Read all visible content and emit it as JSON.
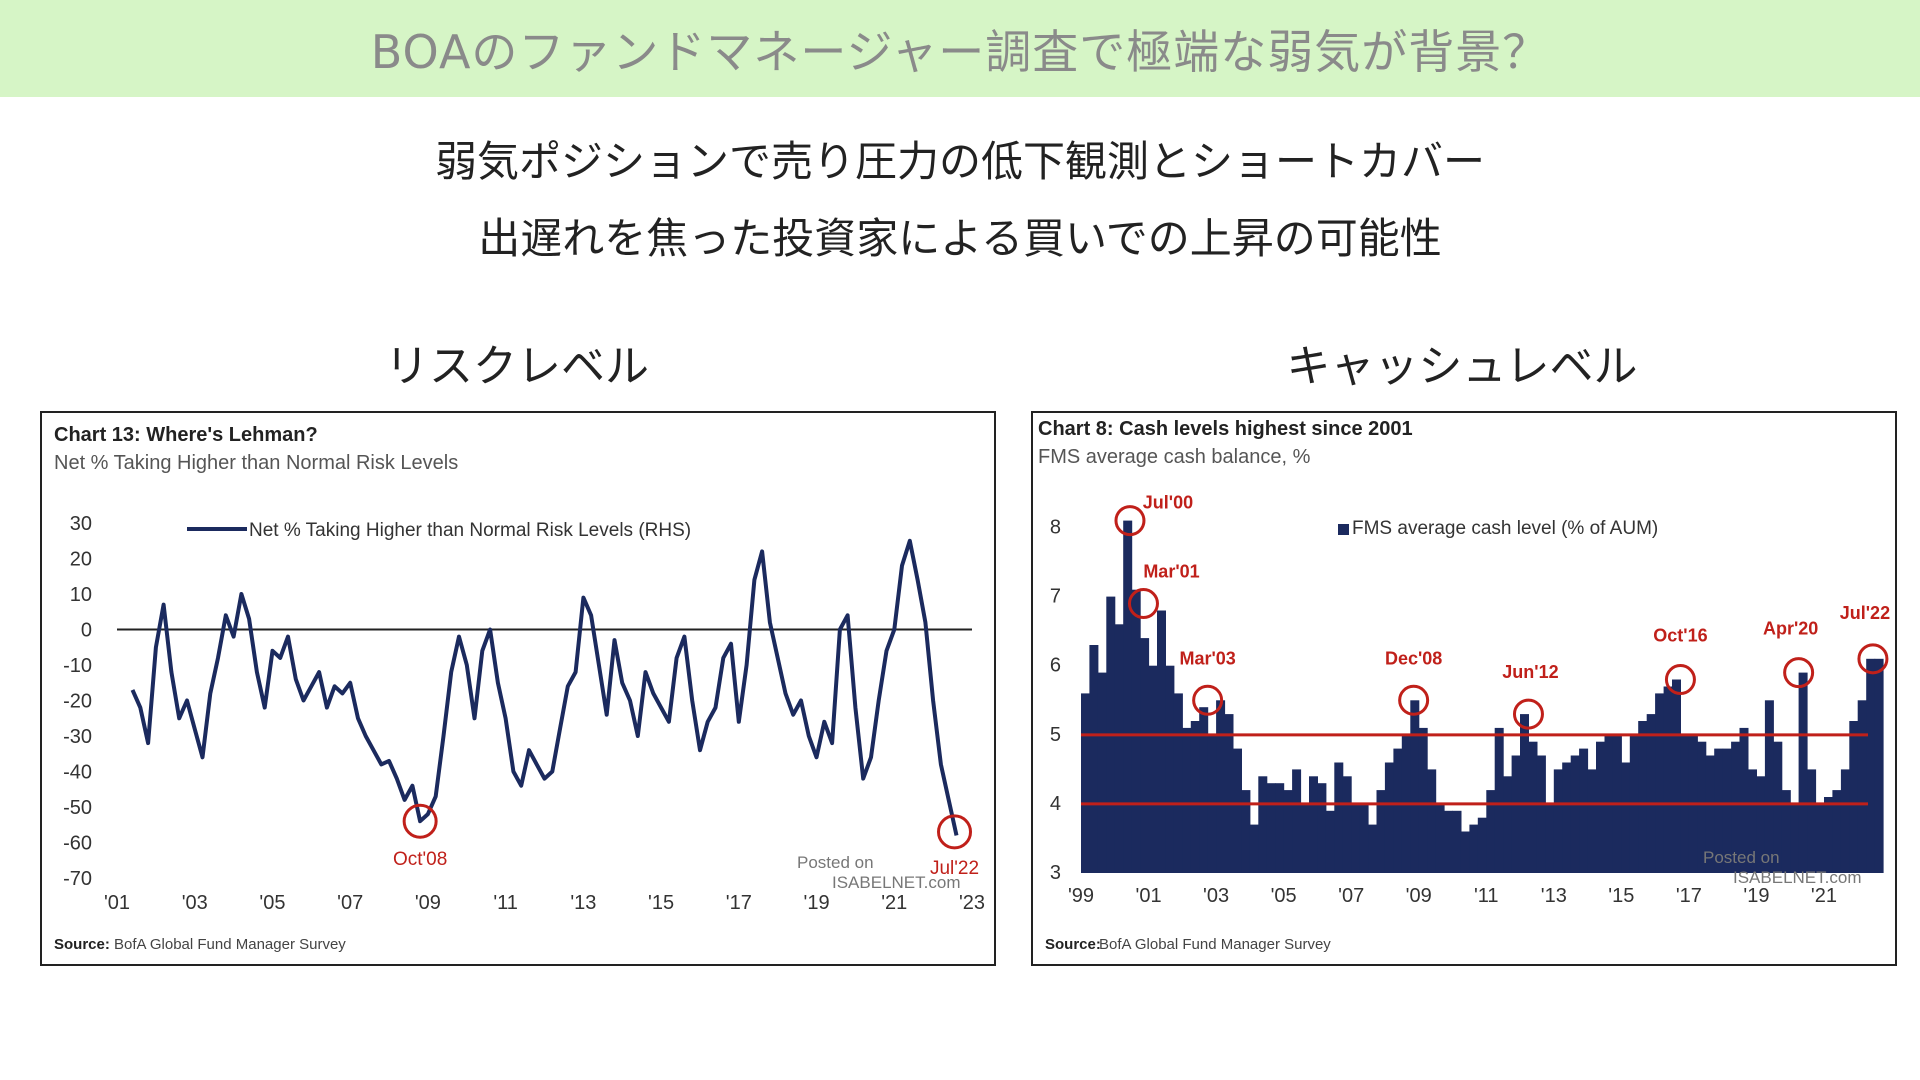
{
  "banner": {
    "title": "BOAのファンドマネージャー調査で極端な弱気が背景？"
  },
  "headline": {
    "line1": "弱気ポジションで売り圧力の低下観測とショートカバー",
    "line2": "出遅れを焦った投資家による買いでの上昇の可能性"
  },
  "panels": {
    "left_label": "リスクレベル",
    "right_label": "キャッシュレベル"
  },
  "colors": {
    "banner_bg": "#d6f5c6",
    "series": "#1b2a5e",
    "annotation": "#c0201a"
  },
  "chart_data": [
    {
      "type": "line",
      "title": "Chart 13: Where's Lehman?",
      "subtitle": "Net % Taking Higher than Normal Risk Levels",
      "legend": "Net % Taking Higher than Normal Risk Levels (RHS)",
      "legend_position": "top",
      "ylim": [
        -70,
        30
      ],
      "yticks": [
        "30",
        "20",
        "10",
        "0",
        "-10",
        "-20",
        "-30",
        "-40",
        "-50",
        "-60",
        "-70"
      ],
      "xlim": [
        2001,
        2023
      ],
      "xticks": [
        "'01",
        "'03",
        "'05",
        "'07",
        "'09",
        "'11",
        "'13",
        "'15",
        "'17",
        "'19",
        "'21",
        "'23"
      ],
      "reference_line": 0,
      "series": [
        {
          "x": [
            2001.4,
            2001.6,
            2001.8,
            2002.0,
            2002.2,
            2002.4,
            2002.6,
            2002.8,
            2003.0,
            2003.2,
            2003.4,
            2003.6,
            2003.8,
            2004.0,
            2004.2,
            2004.4,
            2004.6,
            2004.8,
            2005.0,
            2005.2,
            2005.4,
            2005.6,
            2005.8,
            2006.0,
            2006.2,
            2006.4,
            2006.6,
            2006.8,
            2007.0,
            2007.2,
            2007.4,
            2007.6,
            2007.8,
            2008.0,
            2008.2,
            2008.4,
            2008.6,
            2008.8,
            2009.0,
            2009.2,
            2009.4,
            2009.6,
            2009.8,
            2010.0,
            2010.2,
            2010.4,
            2010.6,
            2010.8,
            2011.0,
            2011.2,
            2011.4,
            2011.6,
            2011.8,
            2012.0,
            2012.2,
            2012.4,
            2012.6,
            2012.8,
            2013.0,
            2013.2,
            2013.4,
            2013.6,
            2013.8,
            2014.0,
            2014.2,
            2014.4,
            2014.6,
            2014.8,
            2015.0,
            2015.2,
            2015.4,
            2015.6,
            2015.8,
            2016.0,
            2016.2,
            2016.4,
            2016.6,
            2016.8,
            2017.0,
            2017.2,
            2017.4,
            2017.6,
            2017.8,
            2018.0,
            2018.2,
            2018.4,
            2018.6,
            2018.8,
            2019.0,
            2019.2,
            2019.4,
            2019.6,
            2019.8,
            2020.0,
            2020.2,
            2020.4,
            2020.6,
            2020.8,
            2021.0,
            2021.2,
            2021.4,
            2021.6,
            2021.8,
            2022.0,
            2022.2,
            2022.4,
            2022.6
          ],
          "y": [
            -17,
            -22,
            -32,
            -5,
            7,
            -12,
            -25,
            -20,
            -28,
            -36,
            -18,
            -8,
            4,
            -2,
            10,
            3,
            -12,
            -22,
            -6,
            -8,
            -2,
            -14,
            -20,
            -16,
            -12,
            -22,
            -16,
            -18,
            -15,
            -25,
            -30,
            -34,
            -38,
            -37,
            -42,
            -48,
            -44,
            -54,
            -52,
            -47,
            -30,
            -12,
            -2,
            -10,
            -25,
            -6,
            0,
            -15,
            -25,
            -40,
            -44,
            -34,
            -38,
            -42,
            -40,
            -28,
            -16,
            -12,
            9,
            4,
            -10,
            -24,
            -3,
            -15,
            -20,
            -30,
            -12,
            -18,
            -22,
            -26,
            -8,
            -2,
            -20,
            -34,
            -26,
            -22,
            -8,
            -4,
            -26,
            -10,
            14,
            22,
            2,
            -8,
            -18,
            -24,
            -20,
            -30,
            -36,
            -26,
            -32,
            0,
            4,
            -22,
            -42,
            -36,
            -20,
            -6,
            0,
            18,
            25,
            14,
            2,
            -20,
            -38,
            -48,
            -58
          ]
        }
      ],
      "annotations": [
        {
          "label": "Oct'08",
          "x": 2008.8,
          "y": -54
        },
        {
          "label": "Jul'22",
          "x": 2022.55,
          "y": -57
        }
      ],
      "source_label": "Source:",
      "source": "BofA Global Fund Manager Survey",
      "watermark_line1": "Posted on",
      "watermark_line2": "ISABELNET.com"
    },
    {
      "type": "bar",
      "title": "Chart 8: Cash levels highest since 2001",
      "subtitle": "FMS average cash balance, %",
      "legend": "FMS average cash level (% of AUM)",
      "legend_position": "top",
      "ylim": [
        3,
        8.5
      ],
      "yticks": [
        "8",
        "7",
        "6",
        "5",
        "4",
        "3"
      ],
      "xlim": [
        1999,
        2022.6
      ],
      "xticks": [
        "'99",
        "'01",
        "'03",
        "'05",
        "'07",
        "'09",
        "'11",
        "'13",
        "'15",
        "'17",
        "'19",
        "'21"
      ],
      "reference_lines": [
        5,
        4
      ],
      "series": [
        {
          "x": [
            1999.0,
            1999.25,
            1999.5,
            1999.75,
            2000.0,
            2000.25,
            2000.5,
            2000.75,
            2001.0,
            2001.25,
            2001.5,
            2001.75,
            2002.0,
            2002.25,
            2002.5,
            2002.75,
            2003.0,
            2003.25,
            2003.5,
            2003.75,
            2004.0,
            2004.25,
            2004.5,
            2004.75,
            2005.0,
            2005.25,
            2005.5,
            2005.75,
            2006.0,
            2006.25,
            2006.5,
            2006.75,
            2007.0,
            2007.25,
            2007.5,
            2007.75,
            2008.0,
            2008.25,
            2008.5,
            2008.75,
            2009.0,
            2009.25,
            2009.5,
            2009.75,
            2010.0,
            2010.25,
            2010.5,
            2010.75,
            2011.0,
            2011.25,
            2011.5,
            2011.75,
            2012.0,
            2012.25,
            2012.5,
            2012.75,
            2013.0,
            2013.25,
            2013.5,
            2013.75,
            2014.0,
            2014.25,
            2014.5,
            2014.75,
            2015.0,
            2015.25,
            2015.5,
            2015.75,
            2016.0,
            2016.25,
            2016.5,
            2016.75,
            2017.0,
            2017.25,
            2017.5,
            2017.75,
            2018.0,
            2018.25,
            2018.5,
            2018.75,
            2019.0,
            2019.25,
            2019.5,
            2019.75,
            2020.0,
            2020.25,
            2020.5,
            2020.75,
            2021.0,
            2021.25,
            2021.5,
            2021.75,
            2022.0,
            2022.25,
            2022.5
          ],
          "values": [
            5.6,
            6.3,
            5.9,
            7.0,
            6.6,
            8.1,
            7.1,
            6.4,
            6.0,
            6.8,
            6.0,
            5.6,
            5.1,
            5.2,
            5.4,
            5.0,
            5.5,
            5.3,
            4.8,
            4.2,
            3.7,
            4.4,
            4.3,
            4.3,
            4.2,
            4.5,
            4.0,
            4.4,
            4.3,
            3.9,
            4.6,
            4.4,
            4.0,
            4.0,
            3.7,
            4.2,
            4.6,
            4.8,
            5.0,
            5.5,
            5.1,
            4.5,
            4.0,
            3.9,
            3.9,
            3.6,
            3.7,
            3.8,
            4.2,
            5.1,
            4.4,
            4.7,
            5.3,
            4.9,
            4.7,
            4.0,
            4.5,
            4.6,
            4.7,
            4.8,
            4.5,
            4.9,
            5.0,
            5.0,
            4.6,
            5.0,
            5.2,
            5.3,
            5.6,
            5.7,
            5.8,
            5.0,
            5.0,
            4.9,
            4.7,
            4.8,
            4.8,
            4.9,
            5.1,
            4.5,
            4.4,
            5.5,
            4.9,
            4.2,
            4.0,
            5.9,
            4.5,
            4.0,
            4.1,
            4.2,
            4.5,
            5.2,
            5.5,
            6.1,
            6.1
          ]
        }
      ],
      "annotations": [
        {
          "label": "Jul'00",
          "x": 2000.45,
          "y": 8.1
        },
        {
          "label": "Mar'01",
          "x": 2000.85,
          "y": 6.9
        },
        {
          "label": "Mar'03",
          "x": 2002.75,
          "y": 5.5
        },
        {
          "label": "Dec'08",
          "x": 2008.85,
          "y": 5.5
        },
        {
          "label": "Jun'12",
          "x": 2012.25,
          "y": 5.3
        },
        {
          "label": "Oct'16",
          "x": 2016.75,
          "y": 5.8
        },
        {
          "label": "Apr'20",
          "x": 2020.25,
          "y": 5.9
        },
        {
          "label": "Jul'22",
          "x": 2022.45,
          "y": 6.1
        }
      ],
      "source_label": "Source:",
      "source": "BofA Global Fund Manager Survey",
      "watermark_line1": "Posted on",
      "watermark_line2": "ISABELNET.com"
    }
  ]
}
